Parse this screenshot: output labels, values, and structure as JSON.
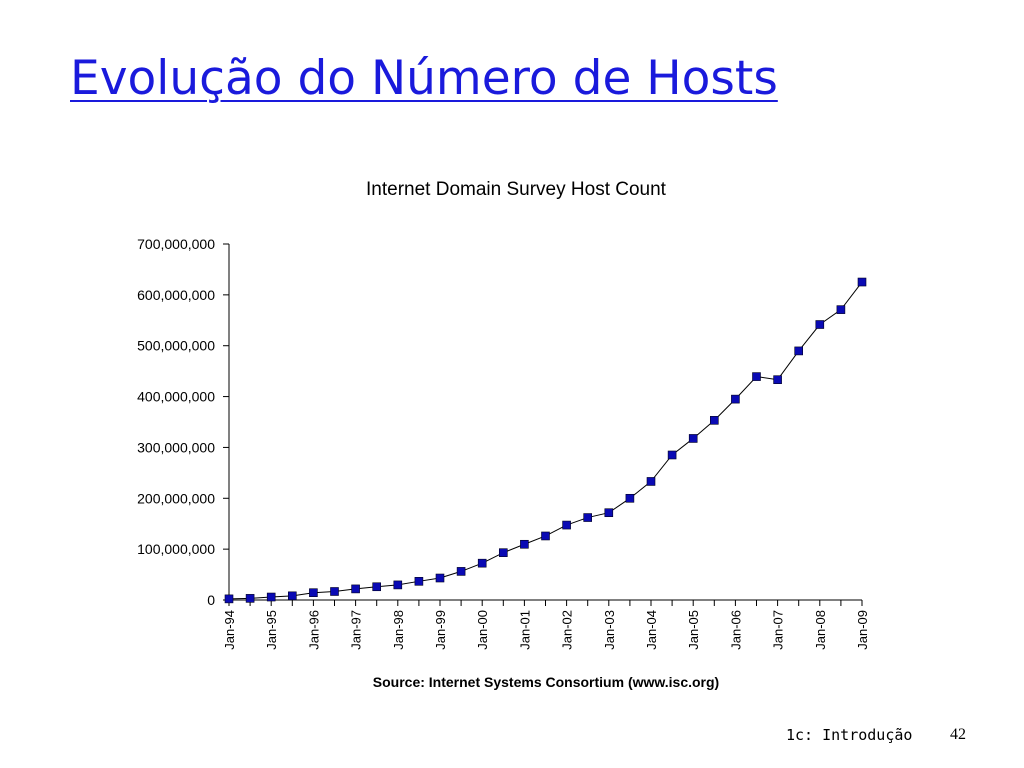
{
  "slide": {
    "title": "Evolução do Número de Hosts",
    "footer": "1c: Introdução",
    "page": "42"
  },
  "colors": {
    "title": "#1a1adc",
    "marker": "#0a0ab4",
    "line": "#000000",
    "axis": "#000000"
  },
  "chart_data": {
    "type": "line",
    "title": "Internet Domain Survey Host Count",
    "source": "Source: Internet Systems Consortium (www.isc.org)",
    "xlabel": "",
    "ylabel": "",
    "ylim": [
      0,
      700000000
    ],
    "yticks": [
      {
        "value": 0,
        "label": "0"
      },
      {
        "value": 100000000,
        "label": "100,000,000"
      },
      {
        "value": 200000000,
        "label": "200,000,000"
      },
      {
        "value": 300000000,
        "label": "300,000,000"
      },
      {
        "value": 400000000,
        "label": "400,000,000"
      },
      {
        "value": 500000000,
        "label": "500,000,000"
      },
      {
        "value": 600000000,
        "label": "600,000,000"
      },
      {
        "value": 700000000,
        "label": "700,000,000"
      }
    ],
    "xticks": [
      "Jan-94",
      "Jan-95",
      "Jan-96",
      "Jan-97",
      "Jan-98",
      "Jan-99",
      "Jan-00",
      "Jan-01",
      "Jan-02",
      "Jan-03",
      "Jan-04",
      "Jan-05",
      "Jan-06",
      "Jan-07",
      "Jan-08",
      "Jan-09"
    ],
    "x": [
      "Jan-94",
      "Jul-94",
      "Jan-95",
      "Jul-95",
      "Jan-96",
      "Jul-96",
      "Jan-97",
      "Jul-97",
      "Jan-98",
      "Jul-98",
      "Jan-99",
      "Jul-99",
      "Jan-00",
      "Jul-00",
      "Jan-01",
      "Jul-01",
      "Jan-02",
      "Jul-02",
      "Jan-03",
      "Jul-03",
      "Jan-04",
      "Jul-04",
      "Jan-05",
      "Jul-05",
      "Jan-06",
      "Jul-06",
      "Jan-07",
      "Jul-07",
      "Jan-08",
      "Jul-08",
      "Jan-09"
    ],
    "series": [
      {
        "values": [
          2217000,
          3212000,
          5846000,
          8200000,
          14352000,
          16729000,
          21819000,
          26053000,
          29670000,
          36739000,
          43230000,
          56218000,
          72398000,
          93047000,
          109574000,
          125888000,
          147345000,
          162128000,
          171638000,
          200000000,
          233101000,
          285139000,
          317646000,
          353284000,
          394992000,
          439286000,
          433193000,
          489774000,
          541677000,
          570938000,
          625226000
        ]
      }
    ],
    "grid": false,
    "legend": "none",
    "marker": "square"
  }
}
